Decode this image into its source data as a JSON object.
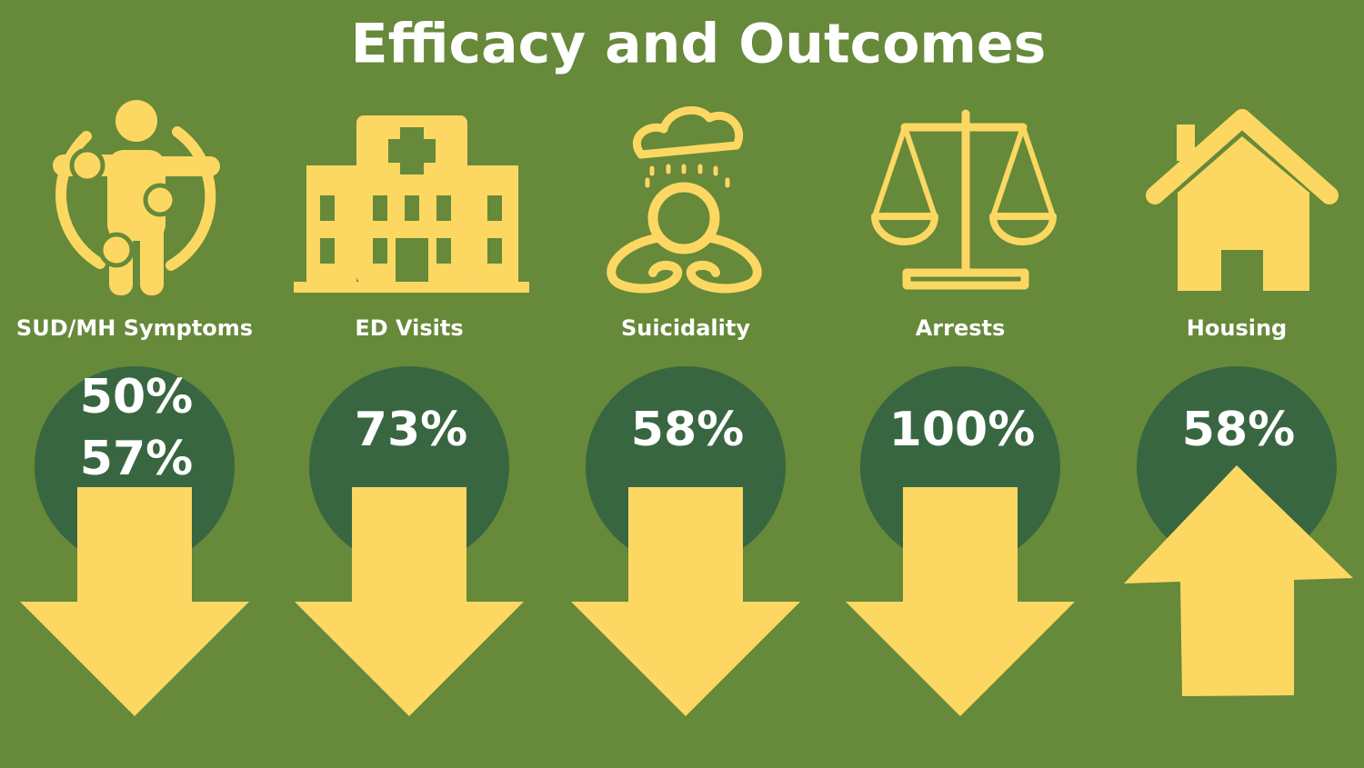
{
  "title": "Efficacy and Outcomes",
  "items": [
    {
      "label": "SUD/MH Symptoms",
      "stats": [
        "50%",
        "57%"
      ],
      "direction": "down"
    },
    {
      "label": "ED Visits",
      "stats": [
        "73%"
      ],
      "direction": "down"
    },
    {
      "label": "Suicidality",
      "stats": [
        "58%"
      ],
      "direction": "down"
    },
    {
      "label": "Arrests",
      "stats": [
        "100%"
      ],
      "direction": "down"
    },
    {
      "label": "Housing",
      "stats": [
        "58%"
      ],
      "direction": "up"
    }
  ]
}
